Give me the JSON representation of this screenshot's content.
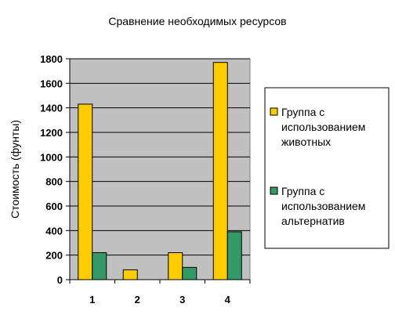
{
  "chart_data": {
    "type": "bar",
    "title": "Сравнение необходимых ресурсов",
    "xlabel": "",
    "ylabel": "Стоимость (фунты)",
    "categories": [
      "1",
      "2",
      "3",
      "4"
    ],
    "ylim": [
      0,
      1800
    ],
    "yticks": [
      0,
      200,
      400,
      600,
      800,
      1000,
      1200,
      1400,
      1600,
      1800
    ],
    "grid": true,
    "legend_position": "right",
    "plot_background": "#c0c0c0",
    "series": [
      {
        "name": "Группа с использованием животных",
        "name_lines": [
          "Группа с",
          "использованием",
          "животных"
        ],
        "color": "#ffcc00",
        "values": [
          1430,
          80,
          220,
          1770
        ]
      },
      {
        "name": "Группа с использованием альтернатив",
        "name_lines": [
          "Группа с",
          "использованием",
          "альтернатив"
        ],
        "color": "#339966",
        "values": [
          220,
          0,
          100,
          390
        ]
      }
    ]
  }
}
